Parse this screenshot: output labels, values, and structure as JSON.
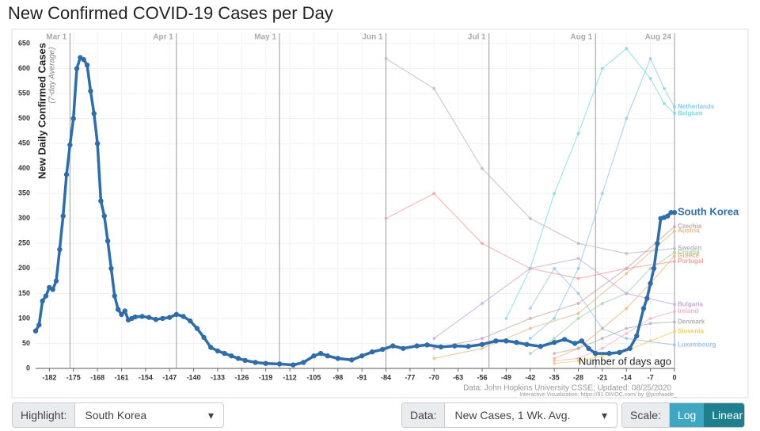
{
  "chart_data": {
    "type": "line",
    "title": "New Confirmed COVID-19 Cases per Day",
    "ylabel": "New Daily Confirmed Cases",
    "ylabel_sub": "(7-day Average)",
    "xlabel": "Number of days ago",
    "source": "Data: John Hopkins University CSSE; Updated: 08/25/2020",
    "credit": "Interactive Visualization: https://91-DIVOC.com/ by @profwade_",
    "xlim": [
      -186,
      0
    ],
    "ylim": [
      0,
      650
    ],
    "xticks": [
      -182,
      -175,
      -168,
      -161,
      -154,
      -147,
      -140,
      -133,
      -126,
      -119,
      -112,
      -105,
      -98,
      -91,
      -84,
      -77,
      -70,
      -63,
      -56,
      -49,
      -42,
      -35,
      -28,
      -21,
      -14,
      -7,
      0
    ],
    "yticks": [
      0,
      50,
      100,
      150,
      200,
      250,
      300,
      350,
      400,
      450,
      500,
      550,
      600,
      650
    ],
    "month_lines": [
      {
        "value": -176,
        "label": "Mar 1"
      },
      {
        "value": -145,
        "label": "Apr 1"
      },
      {
        "value": -115,
        "label": "May 1"
      },
      {
        "value": -84,
        "label": "Jun 1"
      },
      {
        "value": -54,
        "label": "Jul 1"
      },
      {
        "value": -23,
        "label": "Aug 1"
      },
      {
        "value": 0,
        "label": "Aug 24"
      }
    ],
    "grid": true,
    "series": [
      {
        "name": "South Korea",
        "color": "#2f6ca8",
        "highlight": true,
        "x": [
          -186,
          -185,
          -184,
          -183,
          -182,
          -181,
          -180,
          -179,
          -178,
          -177,
          -176,
          -175,
          -174,
          -173,
          -172,
          -171,
          -170,
          -169,
          -168,
          -167,
          -166,
          -165,
          -164,
          -163,
          -162,
          -161,
          -160,
          -159,
          -158,
          -157,
          -155,
          -153,
          -151,
          -149,
          -147,
          -145,
          -143,
          -141,
          -139,
          -137,
          -135,
          -133,
          -131,
          -129,
          -127,
          -125,
          -122,
          -119,
          -115,
          -111,
          -108,
          -105,
          -103,
          -101,
          -98,
          -94,
          -91,
          -88,
          -85,
          -82,
          -79,
          -75,
          -72,
          -68,
          -64,
          -60,
          -56,
          -52,
          -49,
          -46,
          -43,
          -39,
          -35,
          -32,
          -29,
          -27,
          -25,
          -23,
          -19,
          -16,
          -13,
          -11,
          -9,
          -8,
          -7,
          -6,
          -5,
          -4,
          -3,
          -2,
          -1,
          0
        ],
        "values": [
          75,
          87,
          135,
          145,
          162,
          158,
          175,
          238,
          305,
          388,
          447,
          500,
          600,
          622,
          618,
          607,
          555,
          510,
          450,
          335,
          305,
          255,
          200,
          145,
          118,
          108,
          115,
          97,
          100,
          103,
          104,
          102,
          98,
          100,
          102,
          108,
          104,
          95,
          80,
          62,
          42,
          35,
          30,
          25,
          20,
          16,
          12,
          10,
          9,
          7,
          12,
          25,
          30,
          25,
          20,
          17,
          25,
          33,
          38,
          45,
          40,
          45,
          47,
          43,
          45,
          44,
          48,
          55,
          55,
          52,
          48,
          44,
          52,
          58,
          50,
          55,
          40,
          30,
          30,
          32,
          40,
          65,
          120,
          140,
          170,
          200,
          250,
          300,
          302,
          305,
          312,
          312
        ]
      },
      {
        "name": "Netherlands",
        "color": "#8fc7e6",
        "x": [
          -42,
          -35,
          -28,
          -21,
          -14,
          -7,
          -3,
          0
        ],
        "values": [
          60,
          100,
          200,
          350,
          500,
          620,
          560,
          523
        ]
      },
      {
        "name": "Belgium",
        "color": "#7fd6de",
        "x": [
          -49,
          -42,
          -35,
          -28,
          -21,
          -14,
          -7,
          -3,
          0
        ],
        "values": [
          100,
          200,
          350,
          470,
          600,
          640,
          580,
          530,
          510
        ]
      },
      {
        "name": "Czechia",
        "color": "#c9a7a7",
        "x": [
          -70,
          -56,
          -42,
          -28,
          -14,
          0
        ],
        "values": [
          40,
          60,
          100,
          130,
          200,
          284
        ]
      },
      {
        "name": "Austria",
        "color": "#e6b98a",
        "x": [
          -70,
          -56,
          -42,
          -28,
          -14,
          0
        ],
        "values": [
          20,
          40,
          80,
          110,
          190,
          275
        ]
      },
      {
        "name": "Sweden",
        "color": "#b5b5c8",
        "x": [
          -84,
          -70,
          -56,
          -42,
          -28,
          -14,
          0
        ],
        "values": [
          620,
          560,
          400,
          300,
          250,
          230,
          240
        ]
      },
      {
        "name": "Croatia",
        "color": "#9fd3a6",
        "x": [
          -42,
          -35,
          -28,
          -21,
          -14,
          -7,
          0
        ],
        "values": [
          30,
          60,
          100,
          130,
          150,
          200,
          232
        ]
      },
      {
        "name": "Greece",
        "color": "#f2b27a",
        "x": [
          -35,
          -28,
          -21,
          -14,
          -7,
          0
        ],
        "values": [
          20,
          40,
          80,
          120,
          170,
          225
        ]
      },
      {
        "name": "Portugal",
        "color": "#f0a0a0",
        "x": [
          -84,
          -70,
          -56,
          -42,
          -28,
          -14,
          0
        ],
        "values": [
          300,
          350,
          250,
          200,
          180,
          200,
          214
        ]
      },
      {
        "name": "Bulgaria",
        "color": "#c8a8d8",
        "x": [
          -70,
          -56,
          -42,
          -28,
          -14,
          0
        ],
        "values": [
          60,
          130,
          200,
          220,
          150,
          128
        ]
      },
      {
        "name": "Ireland",
        "color": "#f5b0c8",
        "x": [
          -35,
          -28,
          -21,
          -14,
          -7,
          0
        ],
        "values": [
          15,
          20,
          40,
          70,
          100,
          114
        ]
      },
      {
        "name": "Denmark",
        "color": "#b0b0b0",
        "x": [
          -35,
          -28,
          -21,
          -14,
          -7,
          0
        ],
        "values": [
          30,
          40,
          60,
          80,
          90,
          93
        ]
      },
      {
        "name": "Slovenia",
        "color": "#f0d060",
        "x": [
          -35,
          -28,
          -21,
          -14,
          -7,
          0
        ],
        "values": [
          10,
          15,
          25,
          35,
          55,
          74
        ]
      },
      {
        "name": "Luxembourg",
        "color": "#9ec0e8",
        "x": [
          -42,
          -35,
          -28,
          -21,
          -14,
          0
        ],
        "values": [
          120,
          200,
          150,
          80,
          60,
          47
        ]
      }
    ]
  },
  "controls": {
    "highlight_label": "Highlight:",
    "highlight_value": "South Korea",
    "data_label": "Data:",
    "data_value": "New Cases, 1 Wk. Avg.",
    "scale_label": "Scale:",
    "scale_options": [
      "Log",
      "Linear"
    ],
    "scale_selected": 1
  }
}
